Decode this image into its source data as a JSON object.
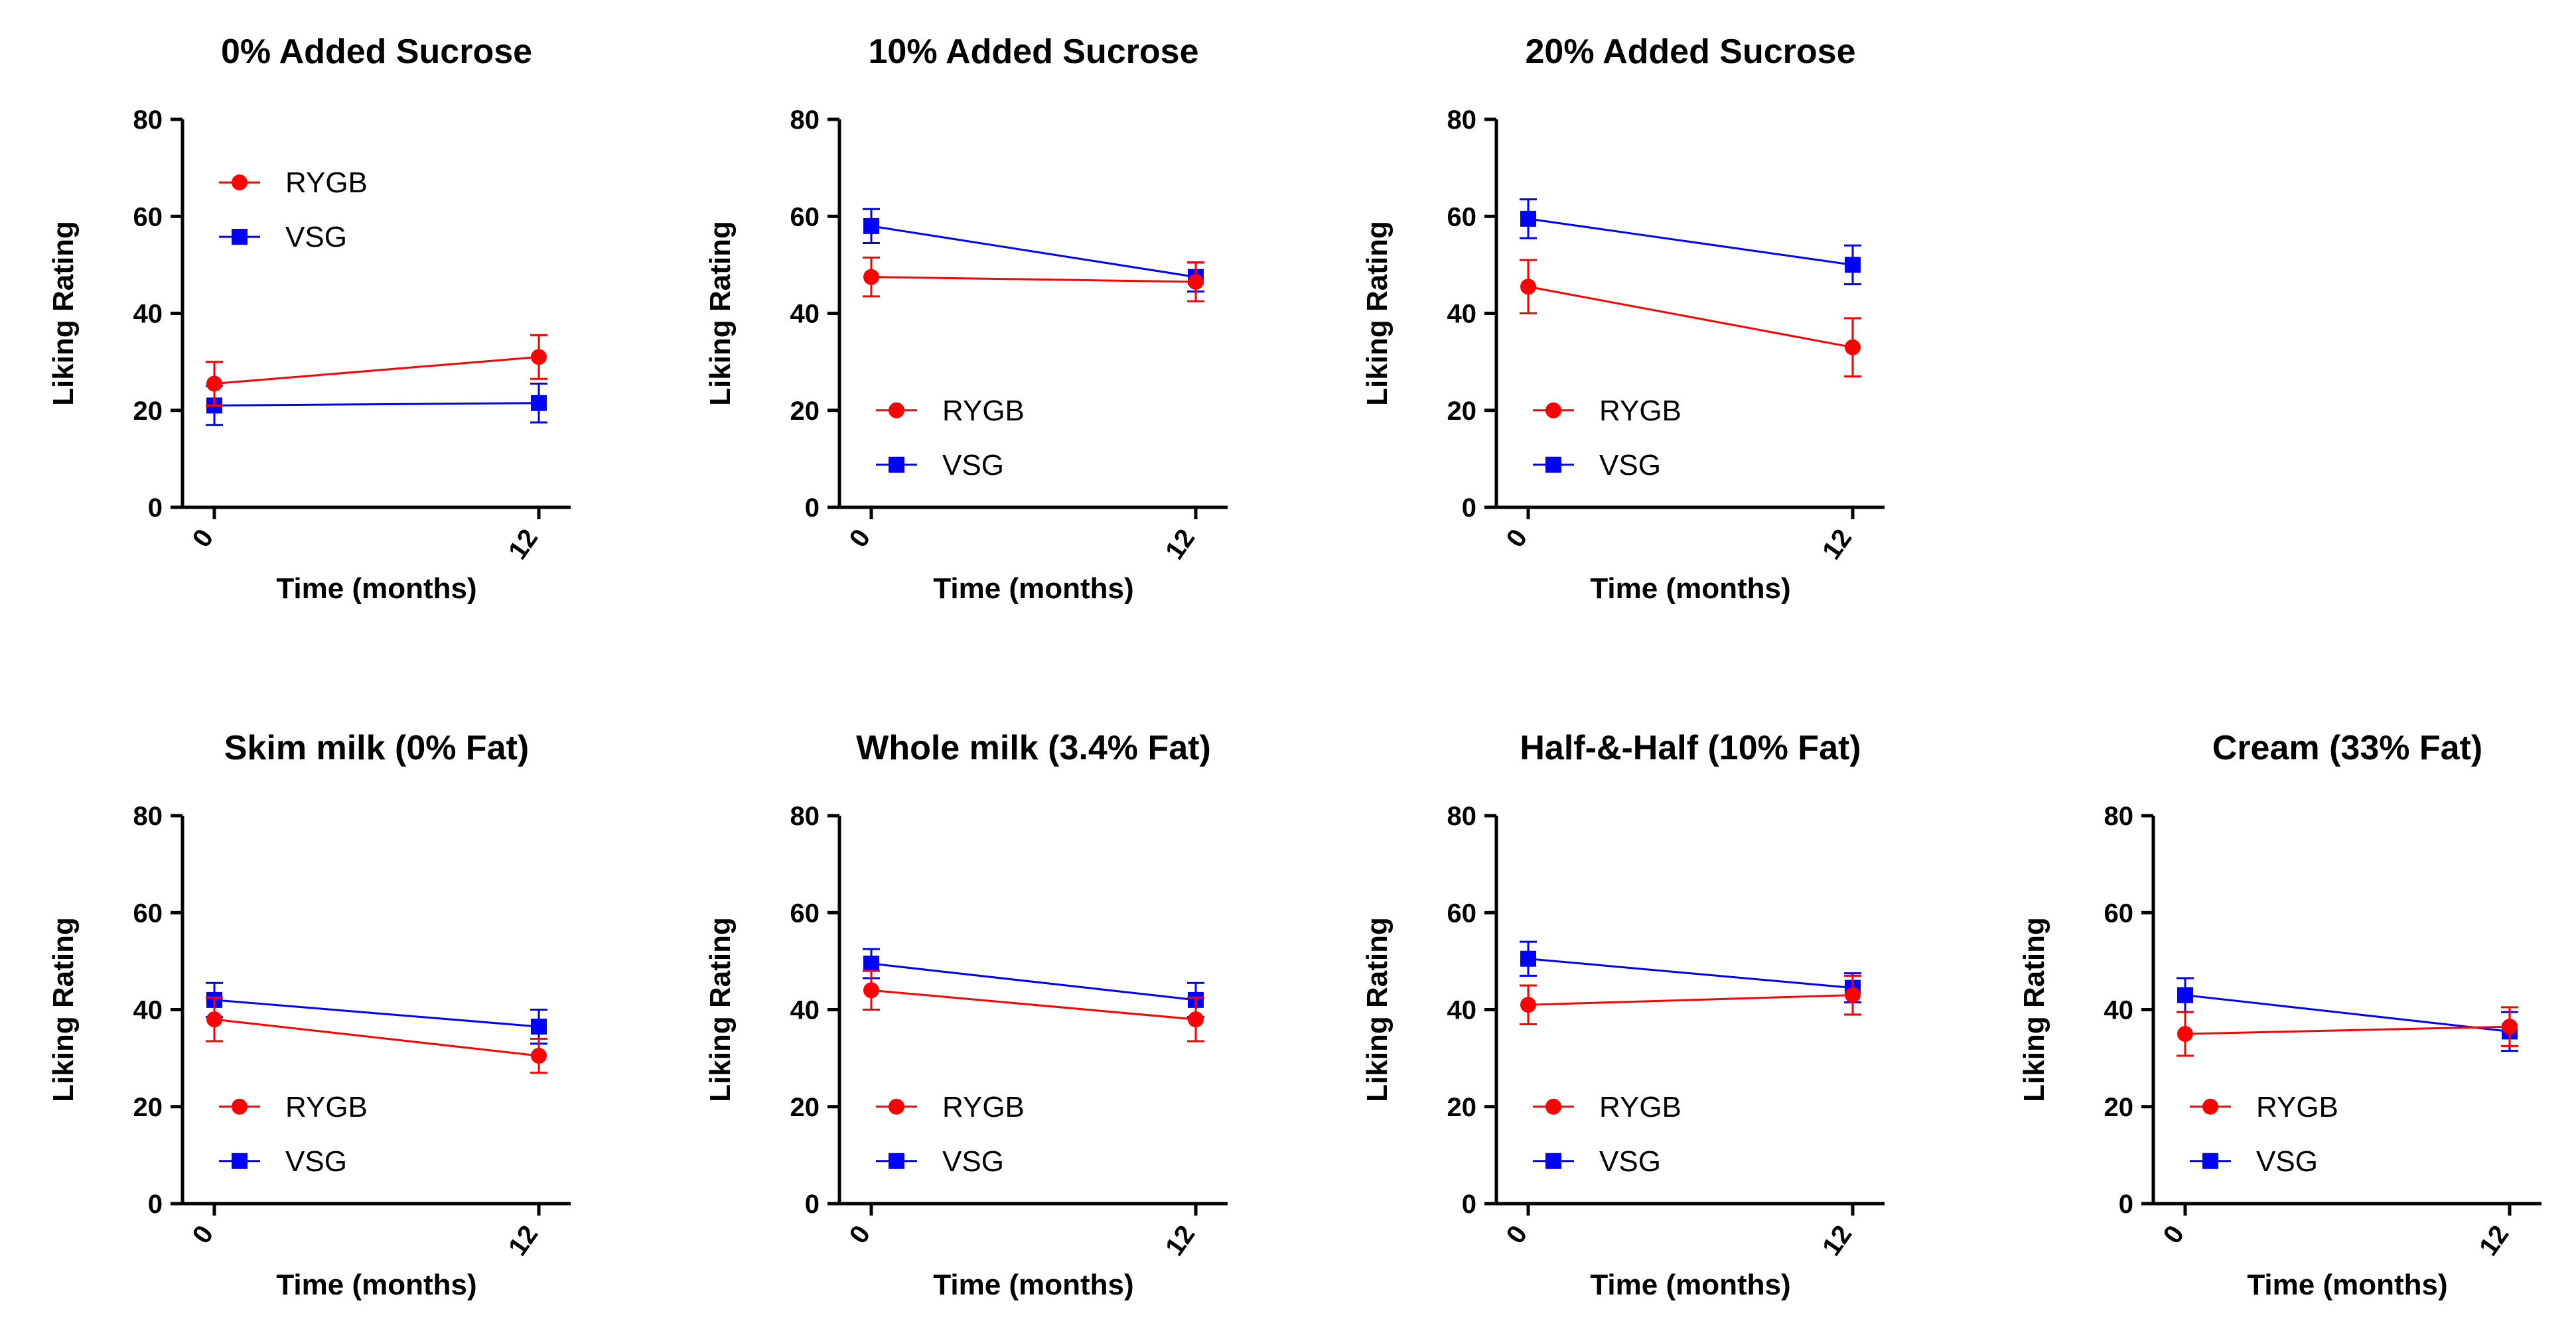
{
  "chart_data": [
    {
      "type": "line",
      "title": "0% Added Sucrose",
      "xlabel": "Time (months)",
      "ylabel": "Liking Rating",
      "x": [
        "0",
        "12"
      ],
      "ylim": [
        0,
        80
      ],
      "yticks": [
        "0",
        "20",
        "40",
        "60",
        "80"
      ],
      "legend": "top-left",
      "series": [
        {
          "name": "RYGB",
          "color": "#ff0000",
          "marker": "circle",
          "values": [
            25.5,
            31
          ],
          "errors": [
            4.5,
            4.5
          ]
        },
        {
          "name": "VSG",
          "color": "#0000ff",
          "marker": "square",
          "values": [
            21,
            21.5
          ],
          "errors": [
            4,
            4
          ]
        }
      ]
    },
    {
      "type": "line",
      "title": "10% Added Sucrose",
      "xlabel": "Time (months)",
      "ylabel": "Liking Rating",
      "x": [
        "0",
        "12"
      ],
      "ylim": [
        0,
        80
      ],
      "yticks": [
        "0",
        "20",
        "40",
        "60",
        "80"
      ],
      "legend": "bottom-left",
      "series": [
        {
          "name": "RYGB",
          "color": "#ff0000",
          "marker": "circle",
          "values": [
            47.5,
            46.5
          ],
          "errors": [
            4,
            4
          ]
        },
        {
          "name": "VSG",
          "color": "#0000ff",
          "marker": "square",
          "values": [
            58,
            47.5
          ],
          "errors": [
            3.5,
            3
          ]
        }
      ]
    },
    {
      "type": "line",
      "title": "20% Added Sucrose",
      "xlabel": "Time (months)",
      "ylabel": "Liking Rating",
      "x": [
        "0",
        "12"
      ],
      "ylim": [
        0,
        80
      ],
      "yticks": [
        "0",
        "20",
        "40",
        "60",
        "80"
      ],
      "legend": "bottom-left",
      "series": [
        {
          "name": "RYGB",
          "color": "#ff0000",
          "marker": "circle",
          "values": [
            45.5,
            33
          ],
          "errors": [
            5.5,
            6
          ]
        },
        {
          "name": "VSG",
          "color": "#0000ff",
          "marker": "square",
          "values": [
            59.5,
            50
          ],
          "errors": [
            4,
            4
          ]
        }
      ]
    },
    {
      "type": "line",
      "title": "Skim milk (0% Fat)",
      "xlabel": "Time (months)",
      "ylabel": "Liking Rating",
      "x": [
        "0",
        "12"
      ],
      "ylim": [
        0,
        80
      ],
      "yticks": [
        "0",
        "20",
        "40",
        "60",
        "80"
      ],
      "legend": "bottom-left",
      "series": [
        {
          "name": "RYGB",
          "color": "#ff0000",
          "marker": "circle",
          "values": [
            38,
            30.5
          ],
          "errors": [
            4.5,
            3.5
          ]
        },
        {
          "name": "VSG",
          "color": "#0000ff",
          "marker": "square",
          "values": [
            42,
            36.5
          ],
          "errors": [
            3.5,
            3.5
          ]
        }
      ]
    },
    {
      "type": "line",
      "title": "Whole milk (3.4% Fat)",
      "xlabel": "Time (months)",
      "ylabel": "Liking Rating",
      "x": [
        "0",
        "12"
      ],
      "ylim": [
        0,
        80
      ],
      "yticks": [
        "0",
        "20",
        "40",
        "60",
        "80"
      ],
      "legend": "bottom-left",
      "series": [
        {
          "name": "RYGB",
          "color": "#ff0000",
          "marker": "circle",
          "values": [
            44,
            38
          ],
          "errors": [
            4,
            4.5
          ]
        },
        {
          "name": "VSG",
          "color": "#0000ff",
          "marker": "square",
          "values": [
            49.5,
            42
          ],
          "errors": [
            3,
            3.5
          ]
        }
      ]
    },
    {
      "type": "line",
      "title": "Half-&-Half (10% Fat)",
      "xlabel": "Time (months)",
      "ylabel": "Liking Rating",
      "x": [
        "0",
        "12"
      ],
      "ylim": [
        0,
        80
      ],
      "yticks": [
        "0",
        "20",
        "40",
        "60",
        "80"
      ],
      "legend": "bottom-left",
      "series": [
        {
          "name": "RYGB",
          "color": "#ff0000",
          "marker": "circle",
          "values": [
            41,
            43
          ],
          "errors": [
            4,
            4
          ]
        },
        {
          "name": "VSG",
          "color": "#0000ff",
          "marker": "square",
          "values": [
            50.5,
            44.5
          ],
          "errors": [
            3.5,
            3
          ]
        }
      ]
    },
    {
      "type": "line",
      "title": "Cream (33% Fat)",
      "xlabel": "Time (months)",
      "ylabel": "Liking Rating",
      "x": [
        "0",
        "12"
      ],
      "ylim": [
        0,
        80
      ],
      "yticks": [
        "0",
        "20",
        "40",
        "60",
        "80"
      ],
      "legend": "bottom-left",
      "series": [
        {
          "name": "RYGB",
          "color": "#ff0000",
          "marker": "circle",
          "values": [
            35,
            36.5
          ],
          "errors": [
            4.5,
            4
          ]
        },
        {
          "name": "VSG",
          "color": "#0000ff",
          "marker": "square",
          "values": [
            43,
            35.5
          ],
          "errors": [
            3.5,
            4
          ]
        }
      ]
    }
  ]
}
